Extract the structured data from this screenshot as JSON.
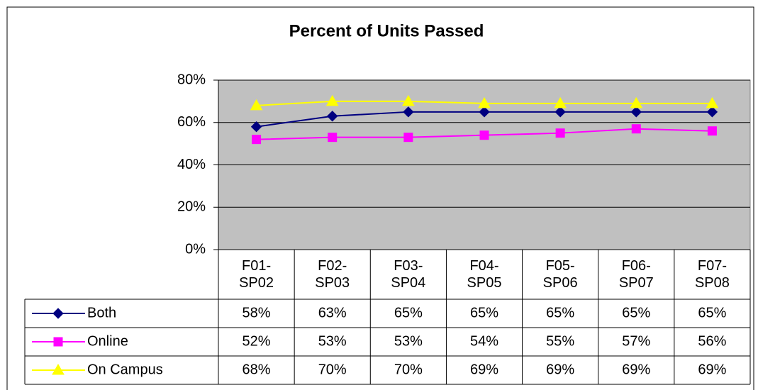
{
  "chart_data": {
    "type": "line",
    "title": "Percent of Units Passed",
    "categories": [
      "F01-SP02",
      "F02-SP03",
      "F03-SP04",
      "F04-SP05",
      "F05-SP06",
      "F06-SP07",
      "F07-SP08"
    ],
    "series": [
      {
        "name": "Both",
        "color": "#000080",
        "marker": "diamond",
        "values": [
          58,
          63,
          65,
          65,
          65,
          65,
          65
        ],
        "value_labels": [
          "58%",
          "63%",
          "65%",
          "65%",
          "65%",
          "65%",
          "65%"
        ]
      },
      {
        "name": "Online",
        "color": "#ff00ff",
        "marker": "square",
        "values": [
          52,
          53,
          53,
          54,
          55,
          57,
          56
        ],
        "value_labels": [
          "52%",
          "53%",
          "53%",
          "54%",
          "55%",
          "57%",
          "56%"
        ]
      },
      {
        "name": "On Campus",
        "color": "#ffff00",
        "marker": "triangle",
        "values": [
          68,
          70,
          70,
          69,
          69,
          69,
          69
        ],
        "value_labels": [
          "68%",
          "70%",
          "70%",
          "69%",
          "69%",
          "69%",
          "69%"
        ]
      }
    ],
    "ylim": [
      0,
      80
    ],
    "yticks": [
      {
        "value": 0,
        "label": "0%"
      },
      {
        "value": 20,
        "label": "20%"
      },
      {
        "value": 40,
        "label": "40%"
      },
      {
        "value": 60,
        "label": "60%"
      },
      {
        "value": 80,
        "label": "80%"
      }
    ],
    "grid": true
  }
}
